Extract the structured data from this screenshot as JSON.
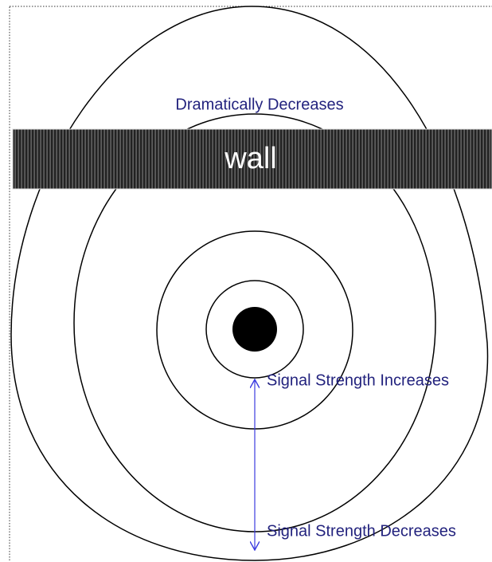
{
  "labels": {
    "top": "Dramatically Decreases",
    "wall": "wall",
    "increases": "Signal Strength Increases",
    "decreases": "Signal Strength Decreases"
  }
}
